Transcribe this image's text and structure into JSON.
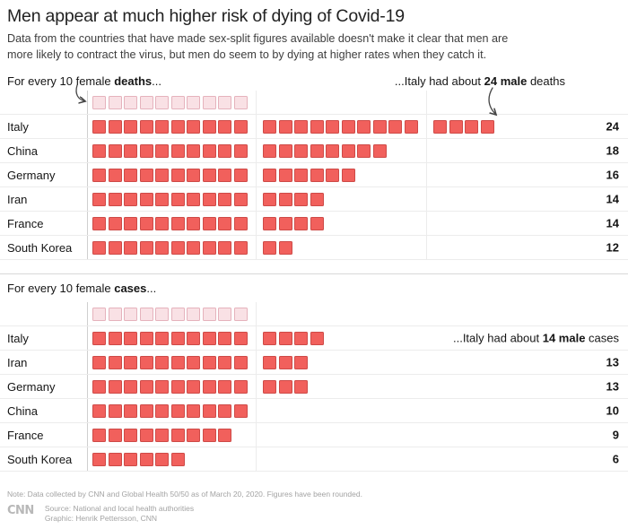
{
  "title": "Men appear at much higher risk of dying of Covid-19",
  "subtitle_lines": [
    "Data from the countries that have made sex-split figures available doesn't make it clear that men are",
    "more likely to contract the virus, but men do seem to by dying at higher rates when they catch it."
  ],
  "colors": {
    "male_fill": "#F1605C",
    "male_border": "#CE4A47",
    "female_fill": "#F9E1E5",
    "female_border": "#E5B2BC",
    "axis_line": "#CFCFCF",
    "grid_line": "#ECECEC",
    "divider": "#D8D8D8",
    "arrow": "#454545",
    "title_text": "#222222",
    "body_text": "#3D3D3D",
    "muted_text": "#A3A3A3",
    "logo_gray": "#B8B8B8"
  },
  "chart_data": [
    {
      "type": "bar",
      "subtype": "pictogram-unit-squares",
      "section": "deaths",
      "title": "For every 10 female deaths...",
      "header": {
        "prefix": "For every 10 female ",
        "bold": "deaths",
        "suffix": "..."
      },
      "annotation": {
        "placement": "header",
        "prefix": "...Italy had about ",
        "bold": "24 male",
        "suffix": " deaths",
        "target": "Italy"
      },
      "reference": {
        "label": "10 female deaths",
        "value": 10
      },
      "group_size": 10,
      "categories": [
        "Italy",
        "China",
        "Germany",
        "Iran",
        "France",
        "South Korea"
      ],
      "values": [
        24,
        18,
        16,
        14,
        14,
        12
      ],
      "gridline_marks": [
        0,
        10,
        20
      ]
    },
    {
      "type": "bar",
      "subtype": "pictogram-unit-squares",
      "section": "cases",
      "title": "For every 10 female cases...",
      "header": {
        "prefix": "For every 10 female ",
        "bold": "cases",
        "suffix": "..."
      },
      "annotation": {
        "placement": "row",
        "prefix": "...Italy had about ",
        "bold": "14 male",
        "suffix": " cases",
        "target": "Italy"
      },
      "reference": {
        "label": "10 female cases",
        "value": 10
      },
      "group_size": 10,
      "categories": [
        "Italy",
        "Iran",
        "Germany",
        "China",
        "France",
        "South Korea"
      ],
      "values": [
        14,
        13,
        13,
        10,
        9,
        6
      ],
      "gridline_marks": [
        0,
        10
      ]
    }
  ],
  "note": "Note: Data collected by CNN and Global Health 50/50 as of March 20, 2020. Figures have been rounded.",
  "footer": {
    "logo": "CNN",
    "source": "Source: National and local health authorities",
    "credit": "Graphic: Henrik Pettersson, CNN"
  }
}
